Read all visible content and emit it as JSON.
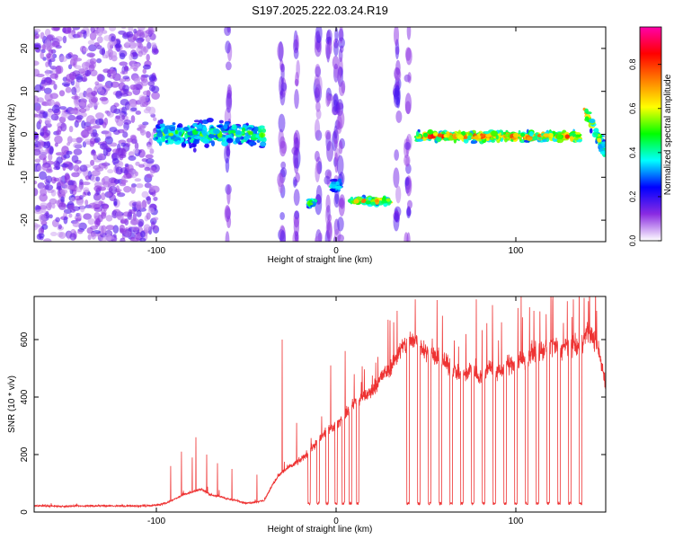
{
  "title": "S197.2025.222.03.24.R19",
  "chart_data": [
    {
      "type": "heatmap",
      "name": "spectrogram",
      "xlabel": "Height of straight line (km)",
      "ylabel": "Frequency (Hz)",
      "xlim": [
        -168,
        150
      ],
      "ylim": [
        -25,
        25
      ],
      "xticks": [
        -100,
        0,
        100
      ],
      "xtick_labels": [
        "-100",
        "0",
        "100"
      ],
      "yticks": [
        -20,
        -10,
        0,
        10,
        20
      ],
      "ytick_labels": [
        "-20",
        "-10",
        "0",
        "10",
        "20"
      ],
      "colorbar": {
        "label": "Normalized spectral amplitude",
        "range": [
          0,
          0.97
        ],
        "ticks": [
          0,
          0.2,
          0.4,
          0.6,
          0.8
        ],
        "tick_labels": [
          "0.0",
          "0.2",
          "0.4",
          "0.6",
          "0.8"
        ],
        "colormap": [
          "#ffffff",
          "#8a2be2",
          "#0000ff",
          "#00ffff",
          "#00ff00",
          "#ffff00",
          "#ff7f00",
          "#ff0000",
          "#ff00aa"
        ]
      },
      "features": [
        {
          "x_range": [
            -168,
            -100
          ],
          "freq": 0,
          "spread": 25,
          "amplitude": 0.15
        },
        {
          "x_range": [
            -100,
            -40
          ],
          "freq": 0,
          "spread": 4,
          "amplitude": 0.55
        },
        {
          "x_range": [
            -15,
            -12
          ],
          "freq": -16,
          "spread": 1,
          "amplitude": 0.6
        },
        {
          "x_range": [
            -2,
            2
          ],
          "freq": -12,
          "spread": 2,
          "amplitude": 0.45
        },
        {
          "x_range": [
            8,
            30
          ],
          "freq": -15.5,
          "spread": 1,
          "amplitude": 0.75
        },
        {
          "x_range": [
            45,
            136
          ],
          "freq": -0.5,
          "spread": 1.5,
          "amplitude": 0.85
        },
        {
          "x_range": [
            138,
            150
          ],
          "freq": 3,
          "spread": 2,
          "amplitude": 0.7
        }
      ]
    },
    {
      "type": "line",
      "name": "snr",
      "xlabel": "Height of straight line (km)",
      "ylabel": "SNR (10 * v/v)",
      "xlim": [
        -168,
        150
      ],
      "ylim": [
        0,
        750
      ],
      "xticks": [
        -100,
        0,
        100
      ],
      "xtick_labels": [
        "-100",
        "0",
        "100"
      ],
      "yticks": [
        0,
        200,
        400,
        600
      ],
      "ytick_labels": [
        "0",
        "200",
        "400",
        "600"
      ],
      "color": "#ee3333",
      "series": [
        {
          "name": "SNR",
          "x": [
            -168,
            -150,
            -130,
            -110,
            -100,
            -95,
            -90,
            -85,
            -80,
            -75,
            -70,
            -65,
            -60,
            -55,
            -50,
            -45,
            -40,
            -35,
            -30,
            -25,
            -20,
            -15,
            -10,
            -5,
            0,
            5,
            10,
            15,
            20,
            25,
            30,
            35,
            40,
            45,
            50,
            55,
            60,
            65,
            70,
            75,
            80,
            85,
            90,
            95,
            100,
            105,
            110,
            115,
            120,
            125,
            130,
            135,
            140,
            145,
            150
          ],
          "y": [
            22,
            20,
            22,
            21,
            24,
            30,
            45,
            60,
            70,
            80,
            60,
            55,
            45,
            40,
            30,
            35,
            40,
            100,
            140,
            160,
            180,
            210,
            250,
            280,
            300,
            340,
            380,
            400,
            420,
            470,
            500,
            560,
            590,
            600,
            560,
            540,
            520,
            500,
            470,
            500,
            470,
            510,
            480,
            510,
            520,
            530,
            560,
            560,
            590,
            560,
            590,
            570,
            630,
            590,
            450
          ]
        }
      ],
      "dropouts_x": [
        -15,
        -10,
        -5,
        0,
        4,
        8,
        12,
        40,
        46,
        52,
        58,
        64,
        70,
        76,
        82,
        88,
        94,
        100,
        106,
        112,
        118,
        124,
        130,
        136
      ],
      "spikes": [
        {
          "x": -92,
          "y": 160
        },
        {
          "x": -86,
          "y": 210
        },
        {
          "x": -80,
          "y": 190
        },
        {
          "x": -78,
          "y": 260
        },
        {
          "x": -72,
          "y": 200
        },
        {
          "x": -66,
          "y": 170
        },
        {
          "x": -58,
          "y": 150
        },
        {
          "x": -44,
          "y": 130
        },
        {
          "x": -30,
          "y": 600
        },
        {
          "x": -22,
          "y": 310
        },
        {
          "x": -10,
          "y": 400
        },
        {
          "x": -3,
          "y": 510
        },
        {
          "x": 5,
          "y": 560
        },
        {
          "x": 8,
          "y": 480
        },
        {
          "x": 32,
          "y": 660
        },
        {
          "x": 34,
          "y": 700
        },
        {
          "x": 44,
          "y": 740
        },
        {
          "x": 58,
          "y": 720
        },
        {
          "x": 70,
          "y": 700
        },
        {
          "x": 78,
          "y": 740
        },
        {
          "x": 87,
          "y": 720
        },
        {
          "x": 92,
          "y": 660
        },
        {
          "x": 100,
          "y": 740
        },
        {
          "x": 103,
          "y": 750
        },
        {
          "x": 110,
          "y": 700
        },
        {
          "x": 118,
          "y": 740
        },
        {
          "x": 124,
          "y": 700
        },
        {
          "x": 132,
          "y": 740
        },
        {
          "x": 138,
          "y": 745
        },
        {
          "x": 145,
          "y": 700
        }
      ]
    }
  ]
}
